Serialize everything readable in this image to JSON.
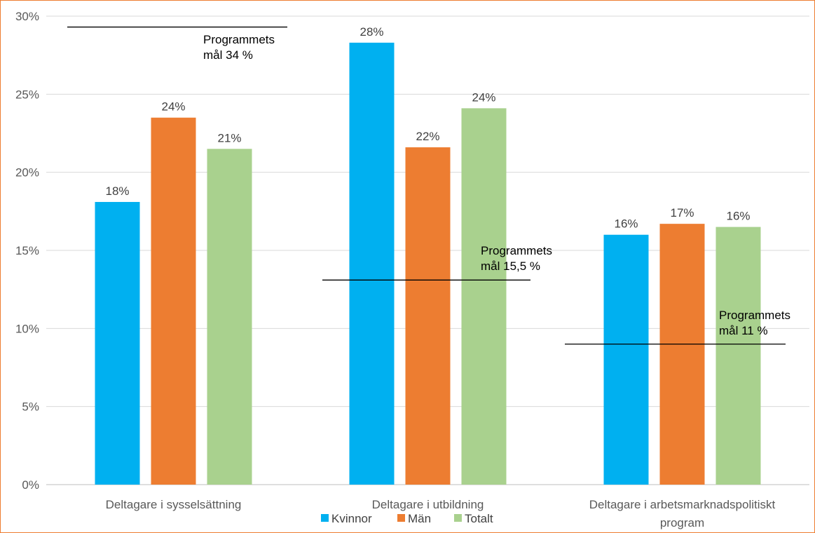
{
  "chart_data": {
    "type": "bar",
    "categories": [
      [
        "Deltagare i sysselsättning"
      ],
      [
        "Deltagare i utbildning"
      ],
      [
        "Deltagare i arbetsmarknadspolitiskt",
        "program"
      ]
    ],
    "series": [
      {
        "name": "Kvinnor",
        "color": "#00B0F0",
        "values": [
          18.1,
          28.3,
          16.0
        ],
        "labels": [
          "18%",
          "28%",
          "16%"
        ]
      },
      {
        "name": "Män",
        "color": "#ED7D31",
        "values": [
          23.5,
          21.6,
          16.7
        ],
        "labels": [
          "24%",
          "22%",
          "17%"
        ]
      },
      {
        "name": "Totalt",
        "color": "#A9D18E",
        "values": [
          21.5,
          24.1,
          16.5
        ],
        "labels": [
          "21%",
          "24%",
          "16%"
        ]
      }
    ],
    "ylim": [
      0,
      30
    ],
    "yticks": [
      0,
      5,
      10,
      15,
      20,
      25,
      30
    ],
    "ytick_labels": [
      "0%",
      "5%",
      "10%",
      "15%",
      "20%",
      "25%",
      "30%"
    ],
    "grid": true,
    "legend_position": "bottom",
    "targets": [
      {
        "category_index": 0,
        "value": 29.3,
        "text": [
          "Programmets",
          "mål 34 %"
        ]
      },
      {
        "category_index": 1,
        "value": 13.1,
        "text": [
          "Programmets",
          "mål 15,5 %"
        ]
      },
      {
        "category_index": 2,
        "value": 9.0,
        "text": [
          "Programmets",
          "mål 11 %"
        ]
      }
    ]
  }
}
